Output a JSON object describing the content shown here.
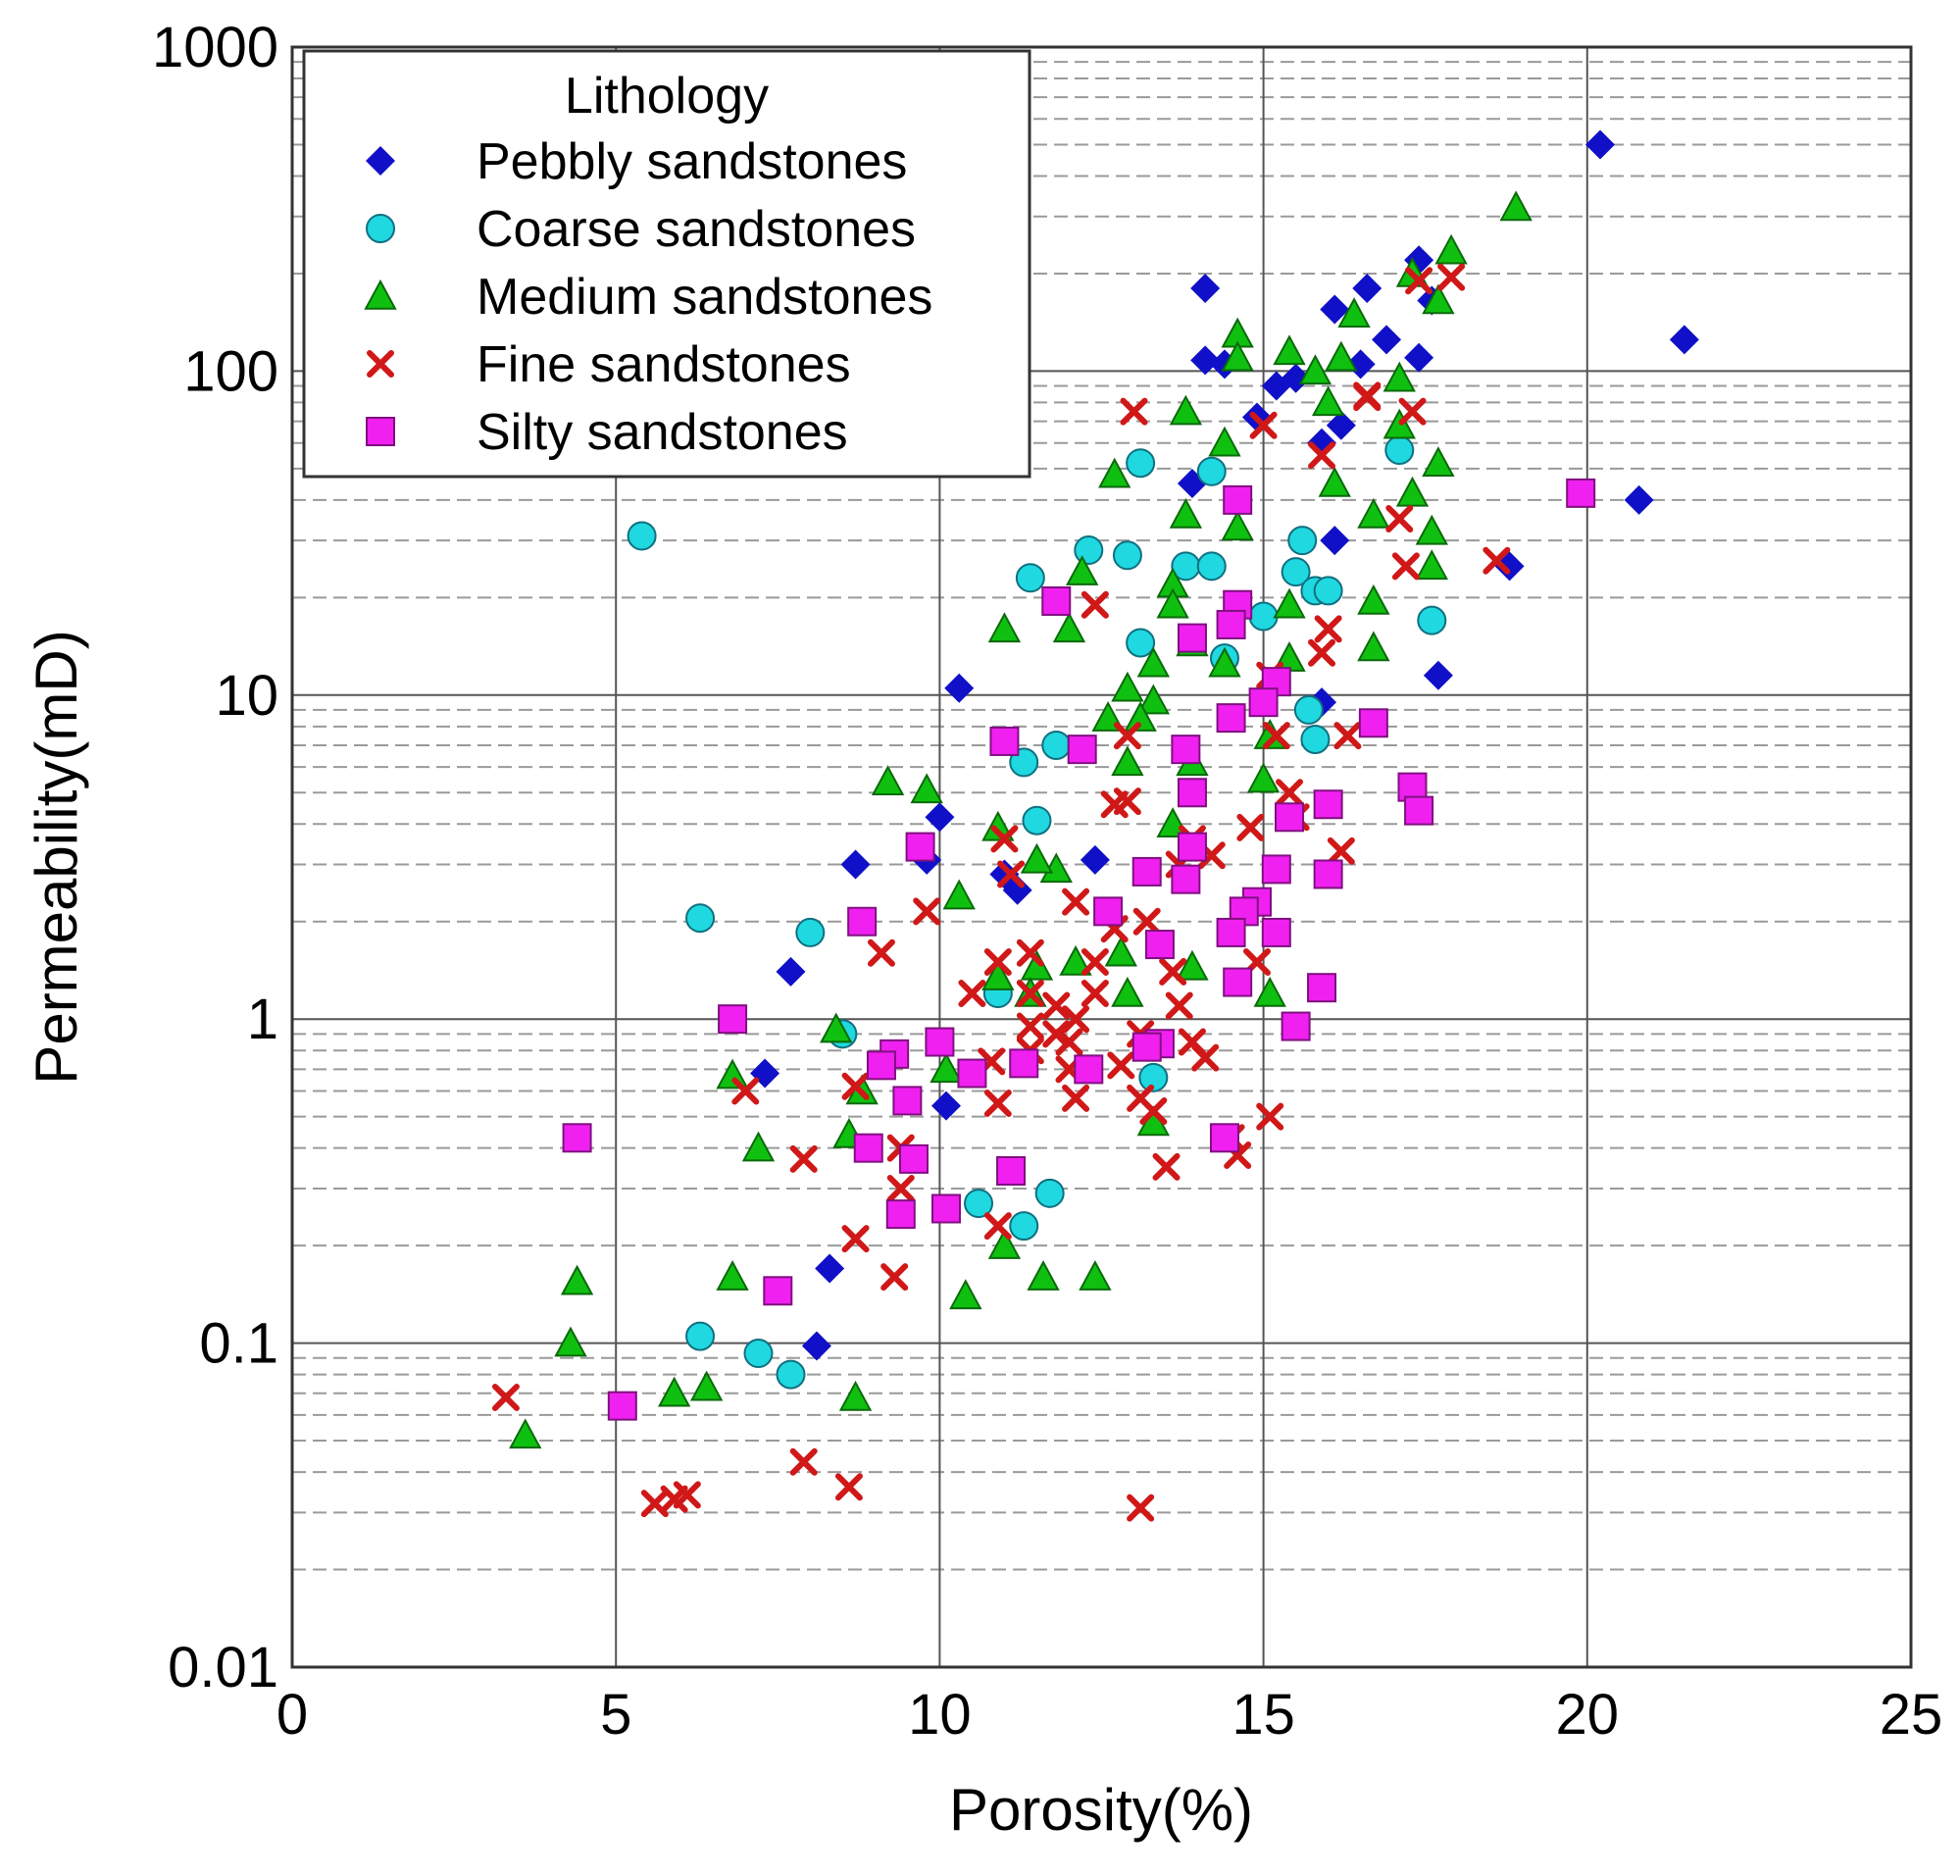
{
  "chart_data": {
    "type": "scatter",
    "xlabel": "Porosity(%)",
    "ylabel": "Permeability(mD)",
    "xlim": [
      0,
      25
    ],
    "ylim": [
      0.01,
      1000
    ],
    "yscale": "log",
    "x_ticks": [
      "0",
      "5",
      "10",
      "15",
      "20",
      "25"
    ],
    "y_ticks": [
      "0.01",
      "0.1",
      "1",
      "10",
      "100",
      "1000"
    ],
    "grid": true,
    "legend": {
      "title": "Lithology",
      "position": "top-left"
    },
    "series": [
      {
        "name": "Pebbly sandstones",
        "marker": "diamond",
        "color": "#1010c8",
        "points": [
          [
            20.2,
            500
          ],
          [
            21.5,
            125
          ],
          [
            20.8,
            40
          ],
          [
            18.8,
            25
          ],
          [
            17.7,
            11.5
          ],
          [
            17.4,
            220
          ],
          [
            17.6,
            165
          ],
          [
            17.4,
            110
          ],
          [
            16.9,
            125
          ],
          [
            16.6,
            180
          ],
          [
            16.5,
            105
          ],
          [
            16.2,
            68
          ],
          [
            16.1,
            155
          ],
          [
            16.1,
            30
          ],
          [
            15.9,
            60
          ],
          [
            15.9,
            9.5
          ],
          [
            15.5,
            95
          ],
          [
            15.2,
            90
          ],
          [
            14.9,
            72
          ],
          [
            14.4,
            105
          ],
          [
            14.1,
            108
          ],
          [
            13.9,
            45
          ],
          [
            14.1,
            180
          ],
          [
            12.4,
            3.1
          ],
          [
            11.2,
            2.5
          ],
          [
            11.0,
            2.8
          ],
          [
            10.3,
            10.5
          ],
          [
            10.0,
            4.2
          ],
          [
            9.8,
            3.1
          ],
          [
            8.7,
            3.0
          ],
          [
            7.7,
            1.4
          ],
          [
            7.3,
            0.68
          ],
          [
            10.1,
            0.54
          ],
          [
            8.3,
            0.17
          ],
          [
            8.1,
            0.098
          ]
        ]
      },
      {
        "name": "Coarse sandstones",
        "marker": "circle",
        "color": "#20d8e0",
        "points": [
          [
            5.4,
            31
          ],
          [
            6.3,
            2.05
          ],
          [
            6.3,
            0.105
          ],
          [
            7.2,
            0.093
          ],
          [
            7.7,
            0.08
          ],
          [
            8.0,
            1.85
          ],
          [
            8.5,
            0.9
          ],
          [
            10.6,
            0.27
          ],
          [
            10.9,
            1.2
          ],
          [
            11.3,
            6.2
          ],
          [
            11.4,
            23
          ],
          [
            11.5,
            4.1
          ],
          [
            11.8,
            7.0
          ],
          [
            11.7,
            0.29
          ],
          [
            11.3,
            0.23
          ],
          [
            12.3,
            28
          ],
          [
            12.9,
            27
          ],
          [
            13.1,
            52
          ],
          [
            13.1,
            14.5
          ],
          [
            13.3,
            0.66
          ],
          [
            13.8,
            25
          ],
          [
            14.2,
            49
          ],
          [
            14.2,
            25
          ],
          [
            14.4,
            13
          ],
          [
            15.0,
            17.5
          ],
          [
            15.5,
            24
          ],
          [
            15.6,
            30
          ],
          [
            15.8,
            21
          ],
          [
            16.0,
            21
          ],
          [
            15.7,
            9.0
          ],
          [
            15.8,
            7.3
          ],
          [
            17.1,
            57
          ],
          [
            17.6,
            17
          ]
        ]
      },
      {
        "name": "Medium sandstones",
        "marker": "triangle",
        "color": "#10c010",
        "points": [
          [
            18.9,
            320
          ],
          [
            17.9,
            235
          ],
          [
            17.7,
            165
          ],
          [
            17.3,
            200
          ],
          [
            17.7,
            52
          ],
          [
            17.6,
            32
          ],
          [
            17.6,
            25
          ],
          [
            17.3,
            42
          ],
          [
            17.1,
            95
          ],
          [
            17.1,
            68
          ],
          [
            16.7,
            36
          ],
          [
            16.7,
            19.5
          ],
          [
            16.7,
            14
          ],
          [
            16.4,
            150
          ],
          [
            16.2,
            110
          ],
          [
            16.0,
            80
          ],
          [
            16.1,
            45
          ],
          [
            15.8,
            100
          ],
          [
            15.4,
            115
          ],
          [
            15.4,
            19
          ],
          [
            15.4,
            13
          ],
          [
            15.1,
            7.5
          ],
          [
            15.0,
            5.5
          ],
          [
            15.1,
            1.2
          ],
          [
            14.6,
            130
          ],
          [
            14.6,
            110
          ],
          [
            14.4,
            60
          ],
          [
            14.6,
            33
          ],
          [
            14.4,
            12.5
          ],
          [
            13.8,
            75
          ],
          [
            13.8,
            36
          ],
          [
            13.6,
            22
          ],
          [
            13.6,
            19
          ],
          [
            13.9,
            14.5
          ],
          [
            13.9,
            6.2
          ],
          [
            13.6,
            4.0
          ],
          [
            13.9,
            1.45
          ],
          [
            13.3,
            12.5
          ],
          [
            13.3,
            9.6
          ],
          [
            13.1,
            8.5
          ],
          [
            12.9,
            10.5
          ],
          [
            12.9,
            6.2
          ],
          [
            12.8,
            1.6
          ],
          [
            12.9,
            1.2
          ],
          [
            12.7,
            48
          ],
          [
            12.2,
            24
          ],
          [
            12.0,
            16
          ],
          [
            12.6,
            8.5
          ],
          [
            12.1,
            1.5
          ],
          [
            11.8,
            2.9
          ],
          [
            11.5,
            3.1
          ],
          [
            11.5,
            1.45
          ],
          [
            11.4,
            1.2
          ],
          [
            11.0,
            16
          ],
          [
            10.9,
            3.9
          ],
          [
            10.9,
            1.35
          ],
          [
            10.3,
            2.4
          ],
          [
            10.1,
            0.7
          ],
          [
            9.8,
            5.1
          ],
          [
            9.2,
            5.4
          ],
          [
            8.4,
            0.93
          ],
          [
            8.8,
            0.6
          ],
          [
            8.6,
            0.44
          ],
          [
            7.2,
            0.4
          ],
          [
            6.8,
            0.67
          ],
          [
            6.8,
            0.16
          ],
          [
            6.4,
            0.073
          ],
          [
            5.9,
            0.07
          ],
          [
            4.4,
            0.155
          ],
          [
            4.3,
            0.1
          ],
          [
            3.6,
            0.052
          ],
          [
            8.7,
            0.068
          ],
          [
            10.4,
            0.14
          ],
          [
            11.0,
            0.2
          ],
          [
            11.6,
            0.16
          ],
          [
            12.4,
            0.16
          ],
          [
            13.3,
            0.48
          ]
        ]
      },
      {
        "name": "Fine sandstones",
        "marker": "cross",
        "color": "#d01818",
        "points": [
          [
            17.9,
            195
          ],
          [
            17.4,
            190
          ],
          [
            17.3,
            75
          ],
          [
            17.1,
            35
          ],
          [
            17.2,
            25
          ],
          [
            16.6,
            84
          ],
          [
            15.9,
            55
          ],
          [
            16.0,
            16
          ],
          [
            15.9,
            13.5
          ],
          [
            16.3,
            7.5
          ],
          [
            16.2,
            3.3
          ],
          [
            15.4,
            5.0
          ],
          [
            15.5,
            4.2
          ],
          [
            15.1,
            11.5
          ],
          [
            15.2,
            7.5
          ],
          [
            14.8,
            3.9
          ],
          [
            14.9,
            1.5
          ],
          [
            15.1,
            0.5
          ],
          [
            14.6,
            0.38
          ],
          [
            14.2,
            3.2
          ],
          [
            13.9,
            3.6
          ],
          [
            13.7,
            3.0
          ],
          [
            13.6,
            1.4
          ],
          [
            13.7,
            1.1
          ],
          [
            13.9,
            0.85
          ],
          [
            14.1,
            0.76
          ],
          [
            13.5,
            0.35
          ],
          [
            13.3,
            0.52
          ],
          [
            13.1,
            0.9
          ],
          [
            13.1,
            0.57
          ],
          [
            13.1,
            0.031
          ],
          [
            13.2,
            2.0
          ],
          [
            12.9,
            7.5
          ],
          [
            12.7,
            4.6
          ],
          [
            12.9,
            4.7
          ],
          [
            12.4,
            19
          ],
          [
            12.7,
            1.9
          ],
          [
            12.4,
            1.5
          ],
          [
            12.4,
            1.2
          ],
          [
            12.8,
            0.72
          ],
          [
            12.1,
            2.3
          ],
          [
            12.1,
            1.0
          ],
          [
            12.0,
            0.85
          ],
          [
            12.0,
            0.7
          ],
          [
            12.1,
            0.57
          ],
          [
            11.8,
            1.1
          ],
          [
            11.8,
            0.9
          ],
          [
            11.4,
            1.6
          ],
          [
            11.4,
            1.2
          ],
          [
            11.4,
            0.95
          ],
          [
            11.4,
            0.8
          ],
          [
            11.0,
            3.6
          ],
          [
            11.1,
            2.8
          ],
          [
            10.9,
            1.5
          ],
          [
            10.5,
            1.2
          ],
          [
            10.9,
            0.55
          ],
          [
            10.9,
            0.23
          ],
          [
            10.8,
            0.74
          ],
          [
            13.0,
            75
          ],
          [
            15.0,
            68
          ],
          [
            16.6,
            83
          ],
          [
            18.6,
            26
          ],
          [
            9.8,
            2.15
          ],
          [
            9.1,
            1.6
          ],
          [
            9.4,
            0.3
          ],
          [
            9.3,
            0.16
          ],
          [
            8.7,
            0.62
          ],
          [
            8.7,
            0.21
          ],
          [
            8.6,
            0.036
          ],
          [
            7.9,
            0.37
          ],
          [
            7.9,
            0.043
          ],
          [
            7.0,
            0.6
          ],
          [
            6.1,
            0.034
          ],
          [
            5.9,
            0.033
          ],
          [
            5.6,
            0.032
          ],
          [
            3.3,
            0.068
          ],
          [
            9.4,
            0.4
          ],
          [
            14.5,
            0.43
          ]
        ]
      },
      {
        "name": "Silty sandstones",
        "marker": "square",
        "color": "#f020f0",
        "points": [
          [
            19.9,
            42
          ],
          [
            17.3,
            5.2
          ],
          [
            17.4,
            4.4
          ],
          [
            16.7,
            8.2
          ],
          [
            16.0,
            4.6
          ],
          [
            16.0,
            2.8
          ],
          [
            15.9,
            1.25
          ],
          [
            15.5,
            0.95
          ],
          [
            15.4,
            4.2
          ],
          [
            15.2,
            2.9
          ],
          [
            15.2,
            1.85
          ],
          [
            15.2,
            11.0
          ],
          [
            15.0,
            9.5
          ],
          [
            14.9,
            2.3
          ],
          [
            14.7,
            2.15
          ],
          [
            14.6,
            1.3
          ],
          [
            14.5,
            1.85
          ],
          [
            14.6,
            40
          ],
          [
            14.6,
            19
          ],
          [
            14.5,
            16.5
          ],
          [
            14.5,
            8.5
          ],
          [
            14.4,
            0.43
          ],
          [
            13.9,
            15
          ],
          [
            13.8,
            6.8
          ],
          [
            13.9,
            5.0
          ],
          [
            13.9,
            3.4
          ],
          [
            13.8,
            2.7
          ],
          [
            13.4,
            0.84
          ],
          [
            13.2,
            2.85
          ],
          [
            13.4,
            1.7
          ],
          [
            13.2,
            0.82
          ],
          [
            12.6,
            2.15
          ],
          [
            12.2,
            6.8
          ],
          [
            12.3,
            0.7
          ],
          [
            11.8,
            19.5
          ],
          [
            11.3,
            0.73
          ],
          [
            11.1,
            0.34
          ],
          [
            11.0,
            7.2
          ],
          [
            10.5,
            0.68
          ],
          [
            10.0,
            0.85
          ],
          [
            10.1,
            0.26
          ],
          [
            9.7,
            3.4
          ],
          [
            9.6,
            0.37
          ],
          [
            9.5,
            0.56
          ],
          [
            9.4,
            0.25
          ],
          [
            9.3,
            0.78
          ],
          [
            9.1,
            0.72
          ],
          [
            8.9,
            0.4
          ],
          [
            8.8,
            2.0
          ],
          [
            7.5,
            0.145
          ],
          [
            6.8,
            1.0
          ],
          [
            5.1,
            0.064
          ],
          [
            4.4,
            0.43
          ]
        ]
      }
    ]
  }
}
